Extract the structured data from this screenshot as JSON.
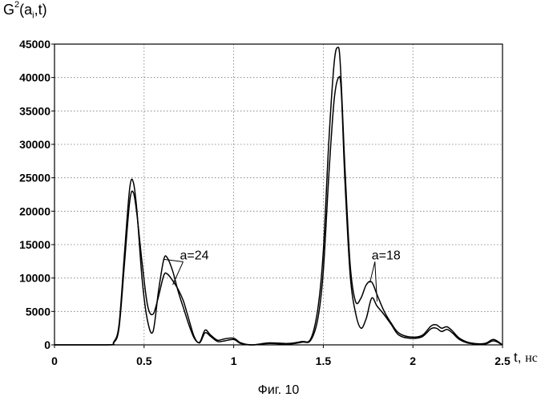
{
  "figure": {
    "caption": "Фиг. 10"
  },
  "chart_data": {
    "type": "line",
    "ylabel": {
      "base": "G",
      "sup": "2",
      "open": "(a",
      "sub": "i",
      "close": ",t)"
    },
    "xlabel": {
      "var": "t,",
      "unit": "нс"
    },
    "xlim": [
      0,
      2.5
    ],
    "ylim": [
      0,
      45000
    ],
    "grid": true,
    "xticks": [
      0,
      0.5,
      1,
      1.5,
      2,
      2.5
    ],
    "xtick_labels": [
      "0",
      "0.5",
      "1",
      "1.5",
      "2",
      "2.5"
    ],
    "yticks": [
      0,
      5000,
      10000,
      15000,
      20000,
      25000,
      30000,
      35000,
      40000,
      45000
    ],
    "ytick_labels": [
      "0",
      "5000",
      "10000",
      "15000",
      "20000",
      "25000",
      "30000",
      "35000",
      "40000",
      "45000"
    ],
    "series": [
      {
        "x": [
          0,
          0.3,
          0.33,
          0.36,
          0.39,
          0.42,
          0.44,
          0.46,
          0.49,
          0.52,
          0.55,
          0.58,
          0.61,
          0.63,
          0.66,
          0.69,
          0.72,
          0.75,
          0.78,
          0.81,
          0.84,
          0.87,
          0.91,
          0.95,
          1.0,
          1.04,
          1.1,
          1.2,
          1.3,
          1.38,
          1.43,
          1.47,
          1.5,
          1.53,
          1.56,
          1.585,
          1.6,
          1.62,
          1.65,
          1.68,
          1.71,
          1.74,
          1.77,
          1.8,
          1.84,
          1.88,
          1.92,
          1.98,
          2.05,
          2.1,
          2.13,
          2.16,
          2.19,
          2.22,
          2.26,
          2.32,
          2.4,
          2.45,
          2.5
        ],
        "values": [
          0,
          0,
          300,
          2500,
          12000,
          21500,
          22800,
          19500,
          12000,
          5800,
          4600,
          7200,
          10400,
          10600,
          9600,
          8300,
          6500,
          3800,
          1200,
          300,
          1800,
          1300,
          500,
          600,
          800,
          200,
          0,
          200,
          100,
          400,
          700,
          4000,
          11000,
          25000,
          36500,
          40000,
          38000,
          25000,
          10500,
          4800,
          2500,
          4000,
          7000,
          5800,
          4500,
          3000,
          1500,
          1000,
          1200,
          2400,
          2500,
          2000,
          2300,
          1800,
          800,
          200,
          100,
          600,
          0
        ]
      },
      {
        "x": [
          0,
          0.3,
          0.33,
          0.36,
          0.39,
          0.42,
          0.44,
          0.46,
          0.49,
          0.52,
          0.55,
          0.58,
          0.61,
          0.63,
          0.66,
          0.69,
          0.72,
          0.75,
          0.78,
          0.81,
          0.84,
          0.87,
          0.91,
          0.95,
          1.0,
          1.04,
          1.1,
          1.2,
          1.3,
          1.38,
          1.43,
          1.47,
          1.5,
          1.53,
          1.56,
          1.58,
          1.595,
          1.62,
          1.65,
          1.68,
          1.71,
          1.74,
          1.77,
          1.8,
          1.84,
          1.88,
          1.92,
          1.98,
          2.05,
          2.1,
          2.13,
          2.16,
          2.19,
          2.22,
          2.26,
          2.32,
          2.4,
          2.45,
          2.5
        ],
        "values": [
          0,
          0,
          400,
          3000,
          13500,
          23500,
          24300,
          20000,
          9500,
          3500,
          2000,
          8000,
          12800,
          13000,
          11000,
          8000,
          5500,
          3000,
          1000,
          400,
          2200,
          1500,
          700,
          900,
          1000,
          300,
          0,
          300,
          200,
          500,
          900,
          5500,
          14000,
          30000,
          42000,
          44500,
          42000,
          27000,
          12000,
          6500,
          7000,
          9000,
          9400,
          7500,
          5000,
          3200,
          1800,
          1200,
          1400,
          2800,
          3000,
          2500,
          2700,
          2100,
          1000,
          300,
          200,
          800,
          0
        ]
      }
    ],
    "annotations": [
      {
        "text": "a=24",
        "x": 0.7,
        "y": 12800,
        "arrow_to": [
          [
            0.61,
            12800
          ],
          [
            0.66,
            9000
          ]
        ]
      },
      {
        "text": "a=18",
        "x": 1.77,
        "y": 12800,
        "arrow_to": [
          [
            1.76,
            9300
          ],
          [
            1.8,
            6500
          ]
        ]
      }
    ]
  }
}
